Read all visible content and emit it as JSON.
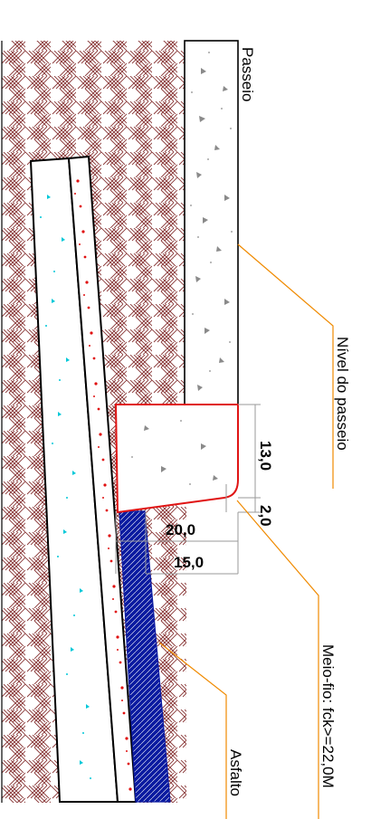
{
  "labels": {
    "passeio": "Passeio",
    "nivel_passeio": "Nível do passeio",
    "meio_fio": "Meio-fio: fck>=22,0M",
    "asfalto": "Asfalto"
  },
  "dimensions": {
    "d13": "13,0",
    "d2": "2,0",
    "d20": "20,0",
    "d15": "15,0"
  },
  "colors": {
    "soil_hatch": "#8b3b3b",
    "outline": "#000000",
    "curb": "#e01414",
    "leader": "#f08a00",
    "asphalt": "#0a1aa0",
    "base_dots": "#00c8d8",
    "red_dots": "#e01010",
    "concrete_marks": "#8a8a8a",
    "dim_lines": "#9a9a9a"
  }
}
